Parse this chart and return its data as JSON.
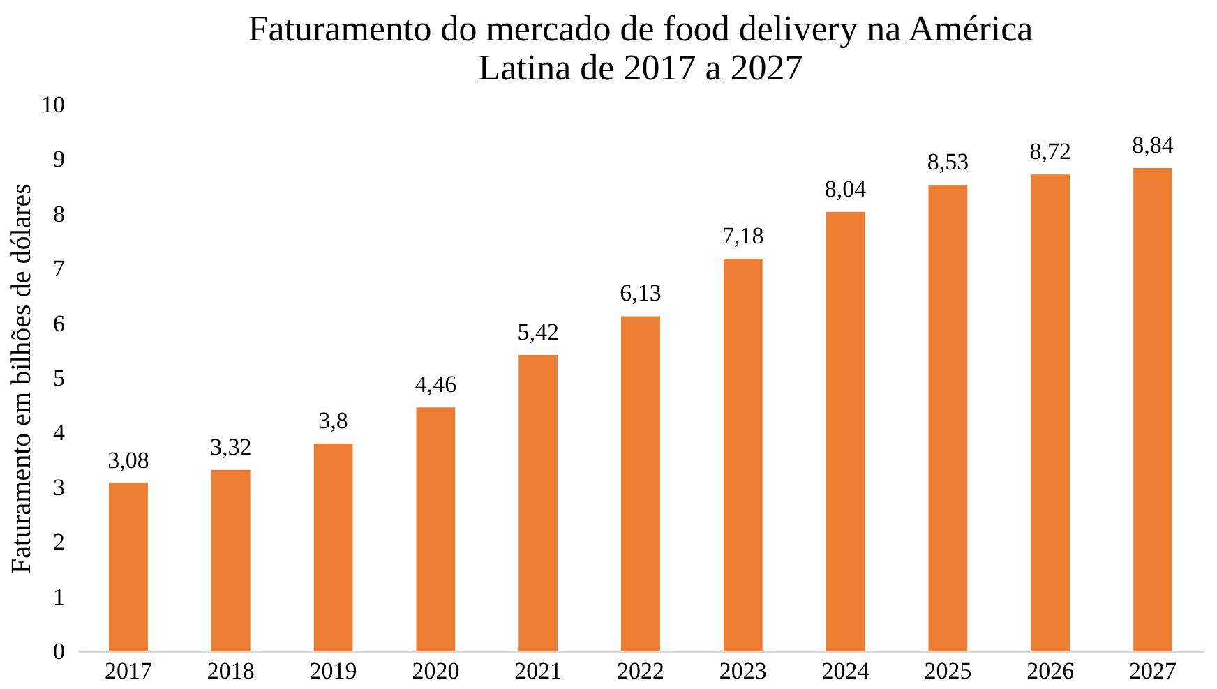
{
  "chart_data": {
    "type": "bar",
    "title": "Faturamento do mercado de food delivery na América Latina de 2017 a 2027",
    "ylabel": "Faturamento em bilhões de dólares",
    "categories": [
      "2017",
      "2018",
      "2019",
      "2020",
      "2021",
      "2022",
      "2023",
      "2024",
      "2025",
      "2026",
      "2027"
    ],
    "values": [
      3.08,
      3.32,
      3.8,
      4.46,
      5.42,
      6.13,
      7.18,
      8.04,
      8.53,
      8.72,
      8.84
    ],
    "value_labels": [
      "3,08",
      "3,32",
      "3,8",
      "4,46",
      "5,42",
      "6,13",
      "7,18",
      "8,04",
      "8,53",
      "8,72",
      "8,84"
    ],
    "color": "#ed7d31",
    "ylim": [
      0,
      10
    ],
    "yticks": [
      0,
      1,
      2,
      3,
      4,
      5,
      6,
      7,
      8,
      9,
      10
    ],
    "grid": false
  }
}
